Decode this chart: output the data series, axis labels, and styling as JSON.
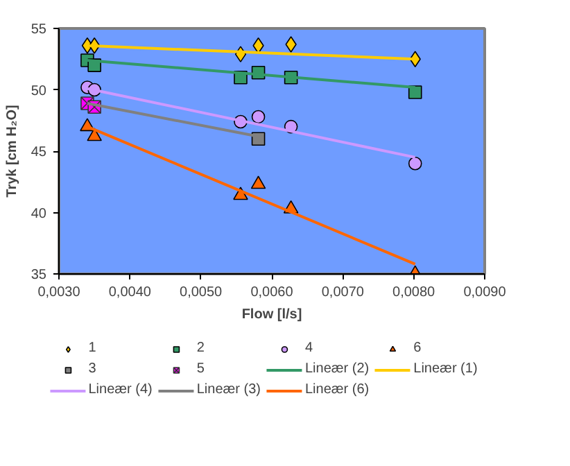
{
  "chart_data": {
    "type": "scatter",
    "xlabel": "Flow [l/s]",
    "ylabel": "Tryk [cm H₂O]",
    "xlim": [
      0.003,
      0.009
    ],
    "ylim": [
      35,
      55
    ],
    "xticks": [
      {
        "value": 0.003,
        "label": "0,0030"
      },
      {
        "value": 0.004,
        "label": "0,0040"
      },
      {
        "value": 0.005,
        "label": "0,0050"
      },
      {
        "value": 0.006,
        "label": "0,0060"
      },
      {
        "value": 0.007,
        "label": "0,0070"
      },
      {
        "value": 0.008,
        "label": "0,0080"
      },
      {
        "value": 0.009,
        "label": "0,0090"
      }
    ],
    "yticks": [
      35,
      40,
      45,
      50,
      55
    ],
    "grid": false,
    "legend": "bottom",
    "series": [
      {
        "name": "1",
        "type": "scatter",
        "marker": "diamond",
        "color": "#ffcc00",
        "x": [
          0.0034,
          0.0035,
          0.00556,
          0.00581,
          0.00627,
          0.00802
        ],
        "values": [
          53.6,
          53.6,
          52.9,
          53.6,
          53.7,
          52.5
        ]
      },
      {
        "name": "2",
        "type": "scatter",
        "marker": "square",
        "color": "#339966",
        "x": [
          0.0034,
          0.0035,
          0.00556,
          0.00581,
          0.00627,
          0.00802
        ],
        "values": [
          52.4,
          52.0,
          51.0,
          51.4,
          51.0,
          49.8
        ]
      },
      {
        "name": "4",
        "type": "scatter",
        "marker": "circle",
        "color": "#cc99ff",
        "x": [
          0.0034,
          0.0035,
          0.00556,
          0.00581,
          0.00627,
          0.00802
        ],
        "values": [
          50.2,
          50.0,
          47.4,
          47.8,
          47.0,
          44.0
        ]
      },
      {
        "name": "6",
        "type": "scatter",
        "marker": "triangle",
        "color": "#ff6600",
        "x": [
          0.0034,
          0.0035,
          0.00556,
          0.00581,
          0.00627,
          0.00802
        ],
        "values": [
          47.0,
          46.2,
          41.4,
          42.3,
          40.3,
          35.0
        ]
      },
      {
        "name": "3",
        "type": "scatter",
        "marker": "square",
        "color": "#808080",
        "x": [
          0.00581
        ],
        "values": [
          46.0
        ]
      },
      {
        "name": "5",
        "type": "scatter",
        "marker": "cross",
        "color": "#ff00ff",
        "x": [
          0.0034,
          0.0035
        ],
        "values": [
          48.9,
          48.6
        ]
      },
      {
        "name": "Lineær (2)",
        "type": "line",
        "color": "#339966",
        "x": [
          0.0034,
          0.00802
        ],
        "values": [
          52.4,
          50.2
        ]
      },
      {
        "name": "Lineær (1)",
        "type": "line",
        "color": "#ffcc00",
        "x": [
          0.0034,
          0.00802
        ],
        "values": [
          53.6,
          52.5
        ]
      },
      {
        "name": "Lineær (4)",
        "type": "line",
        "color": "#cc99ff",
        "x": [
          0.0034,
          0.00802
        ],
        "values": [
          50.1,
          44.5
        ]
      },
      {
        "name": "Lineær (3)",
        "type": "line",
        "color": "#808080",
        "x": [
          0.0034,
          0.00581
        ],
        "values": [
          48.9,
          46.2
        ]
      },
      {
        "name": "Lineær (6)",
        "type": "line",
        "color": "#ff6600",
        "x": [
          0.0034,
          0.00802
        ],
        "values": [
          47.0,
          35.8
        ]
      }
    ]
  }
}
